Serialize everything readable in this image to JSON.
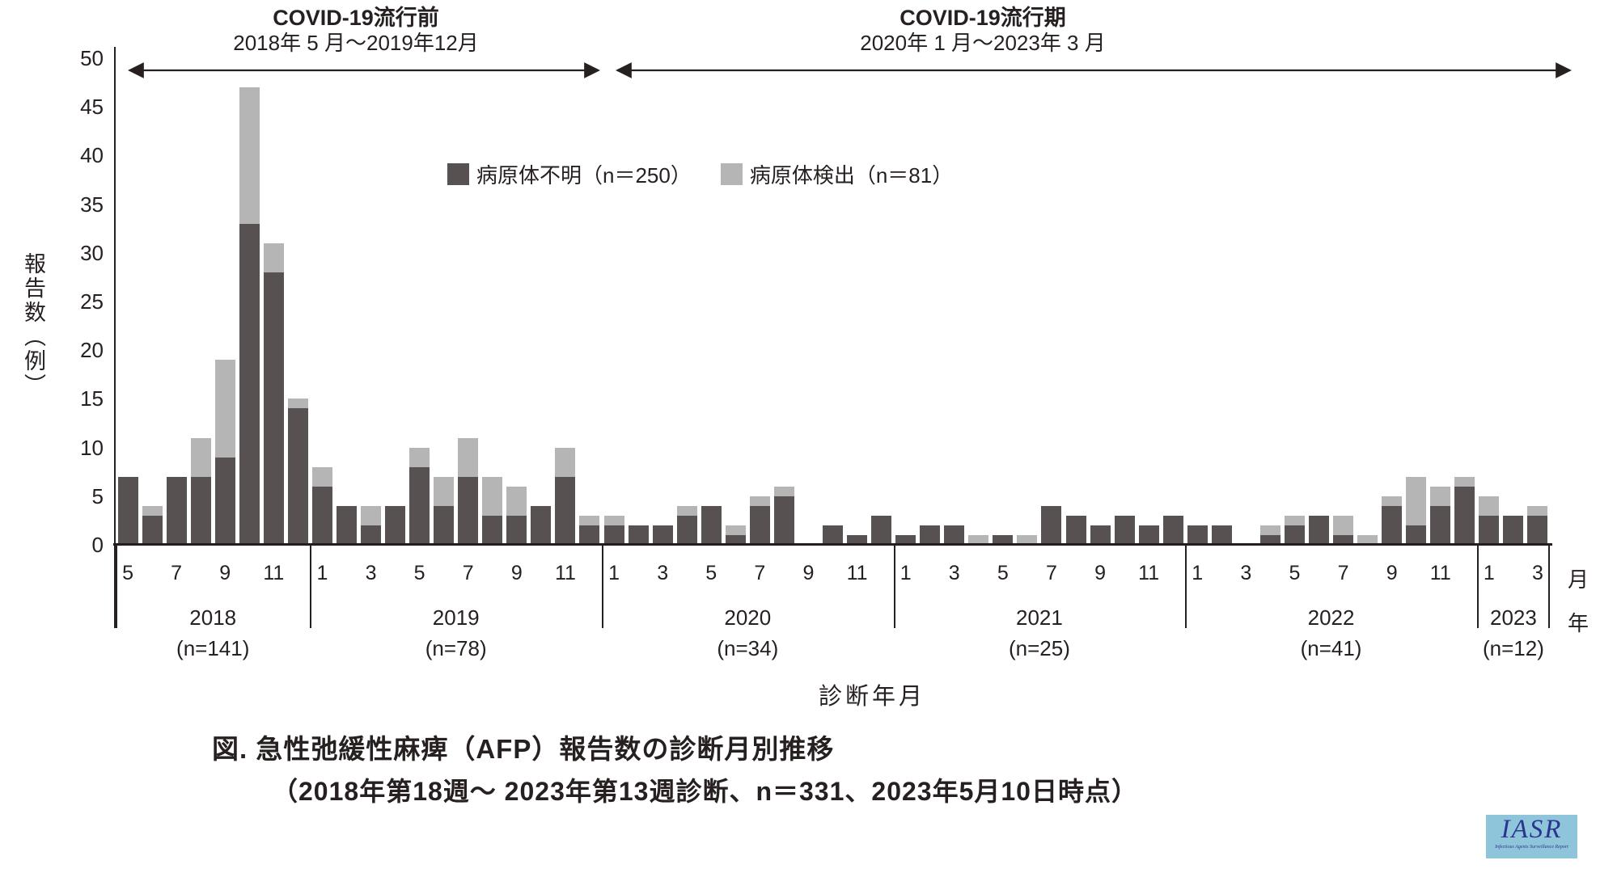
{
  "header": {
    "pre_period": {
      "title": "COVID-19流行前",
      "range": "2018年 5 月～2019年12月"
    },
    "epidemic_period": {
      "title": "COVID-19流行期",
      "range": "2020年 1 月～2023年 3 月"
    }
  },
  "legend": [
    {
      "key": "pathogen-unknown",
      "label": "病原体不明（n＝250）",
      "color": "#575152"
    },
    {
      "key": "pathogen-detected",
      "label": "病原体検出（n＝81）",
      "color": "#b5b5b5"
    }
  ],
  "y_axis": {
    "title": "報告数（例）"
  },
  "x_axis": {
    "title": "診断年月",
    "unit_month": "月",
    "unit_year": "年"
  },
  "caption": {
    "line1": "図. 急性弛緩性麻痺（AFP）報告数の診断月別推移",
    "line2": "（2018年第18週～ 2023年第13週診断、n＝331、2023年5月10日時点）"
  },
  "logo": {
    "text": "IASR",
    "subtext": "Infectious Agents Surveillance Report"
  },
  "chart_data": {
    "type": "bar",
    "stacked": true,
    "title": "急性弛緩性麻痺（AFP）報告数の診断月別推移",
    "xlabel": "診断年月",
    "ylabel": "報告数（例）",
    "ylim": [
      0,
      50
    ],
    "y_tick_step": 5,
    "grid": false,
    "legend_position": "top-center",
    "series_names": {
      "unknown": "病原体不明",
      "detected": "病原体検出"
    },
    "series_totals": {
      "unknown": 250,
      "detected": 81,
      "all": 331
    },
    "colors": {
      "unknown": "#575152",
      "detected": "#b5b5b5"
    },
    "groups": [
      {
        "year": "2018",
        "n": 141,
        "n_label": "(n=141)",
        "months": [
          5,
          6,
          7,
          8,
          9,
          10,
          11,
          12
        ],
        "unknown": [
          7,
          3,
          7,
          7,
          9,
          33,
          28,
          14
        ],
        "detected": [
          0,
          1,
          0,
          4,
          10,
          14,
          3,
          1
        ]
      },
      {
        "year": "2019",
        "n": 78,
        "n_label": "(n=78)",
        "months": [
          1,
          2,
          3,
          4,
          5,
          6,
          7,
          8,
          9,
          10,
          11,
          12
        ],
        "unknown": [
          6,
          4,
          2,
          4,
          8,
          4,
          7,
          3,
          3,
          4,
          7,
          2
        ],
        "detected": [
          2,
          0,
          2,
          0,
          2,
          3,
          4,
          4,
          3,
          0,
          3,
          1
        ]
      },
      {
        "year": "2020",
        "n": 34,
        "n_label": "(n=34)",
        "months": [
          1,
          2,
          3,
          4,
          5,
          6,
          7,
          8,
          9,
          10,
          11,
          12
        ],
        "unknown": [
          2,
          2,
          2,
          3,
          4,
          1,
          4,
          5,
          0,
          2,
          1,
          3
        ],
        "detected": [
          1,
          0,
          0,
          1,
          0,
          1,
          1,
          1,
          0,
          0,
          0,
          0
        ]
      },
      {
        "year": "2021",
        "n": 25,
        "n_label": "(n=25)",
        "months": [
          1,
          2,
          3,
          4,
          5,
          6,
          7,
          8,
          9,
          10,
          11,
          12
        ],
        "unknown": [
          1,
          2,
          2,
          0,
          1,
          0,
          4,
          3,
          2,
          3,
          2,
          3
        ],
        "detected": [
          0,
          0,
          0,
          1,
          0,
          1,
          0,
          0,
          0,
          0,
          0,
          0
        ]
      },
      {
        "year": "2022",
        "n": 41,
        "n_label": "(n=41)",
        "months": [
          1,
          2,
          3,
          4,
          5,
          6,
          7,
          8,
          9,
          10,
          11,
          12
        ],
        "unknown": [
          2,
          2,
          0,
          1,
          2,
          3,
          1,
          0,
          4,
          2,
          4,
          6
        ],
        "detected": [
          0,
          0,
          0,
          1,
          1,
          0,
          2,
          1,
          1,
          5,
          2,
          1
        ]
      },
      {
        "year": "2023",
        "n": 12,
        "n_label": "(n=12)",
        "months": [
          1,
          2,
          3
        ],
        "unknown": [
          3,
          3,
          3
        ],
        "detected": [
          2,
          0,
          1
        ]
      }
    ]
  }
}
